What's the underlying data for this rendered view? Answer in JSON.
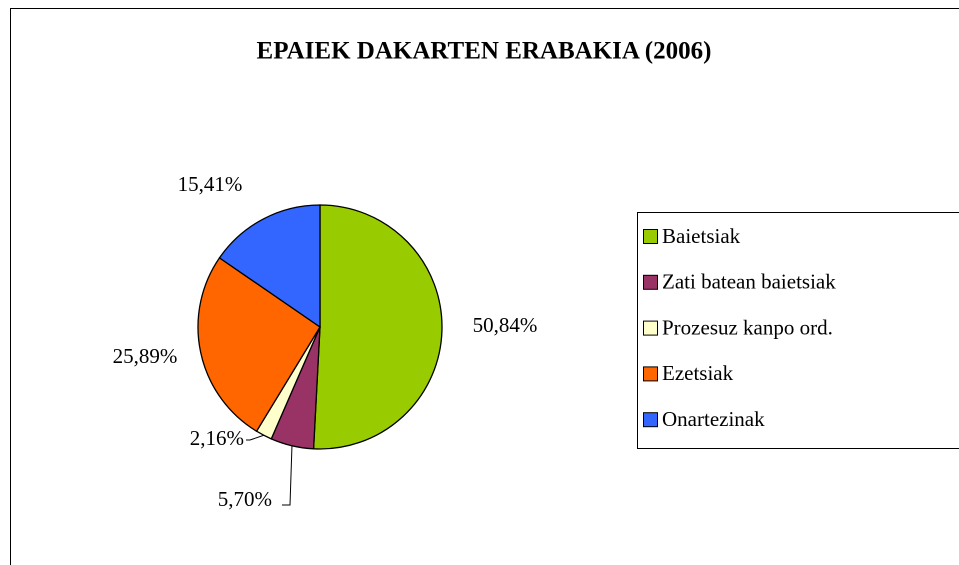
{
  "chart_data": {
    "type": "pie",
    "title": "EPAIEK DAKARTEN ERABAKIA (2006)",
    "categories": [
      "Baietsiak",
      "Zati batean baietsiak",
      "Prozesuz kanpo ord.",
      "Ezetsiak",
      "Onartezinak"
    ],
    "values": [
      50.84,
      5.7,
      2.16,
      25.89,
      15.41
    ],
    "value_labels": [
      "50,84%",
      "5,70%",
      "2,16%",
      "25,89%",
      "15,41%"
    ],
    "colors": [
      "#99cc00",
      "#993366",
      "#ffffcc",
      "#ff6600",
      "#3366ff"
    ],
    "legend": "right"
  }
}
